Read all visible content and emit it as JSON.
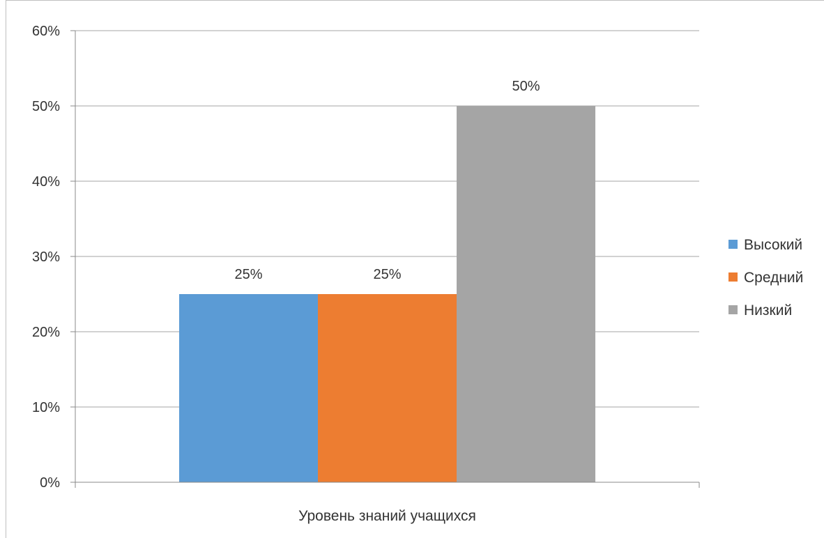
{
  "chart_data": {
    "type": "bar",
    "categories": [
      "Уровень знаний учащихся"
    ],
    "series": [
      {
        "name": "Высокий",
        "values": [
          0.25
        ],
        "label": "25%",
        "color": "#5b9bd5"
      },
      {
        "name": "Средний",
        "values": [
          0.25
        ],
        "label": "25%",
        "color": "#ed7d31"
      },
      {
        "name": "Низкий",
        "values": [
          0.5
        ],
        "label": "50%",
        "color": "#a5a5a5"
      }
    ],
    "ylim": [
      0,
      0.6
    ],
    "yticks": [
      "0%",
      "10%",
      "20%",
      "30%",
      "40%",
      "50%",
      "60%"
    ],
    "ytick_values": [
      0,
      0.1,
      0.2,
      0.3,
      0.4,
      0.5,
      0.6
    ],
    "grid": true,
    "legend_position": "right",
    "title": "",
    "xlabel": "",
    "ylabel": ""
  }
}
